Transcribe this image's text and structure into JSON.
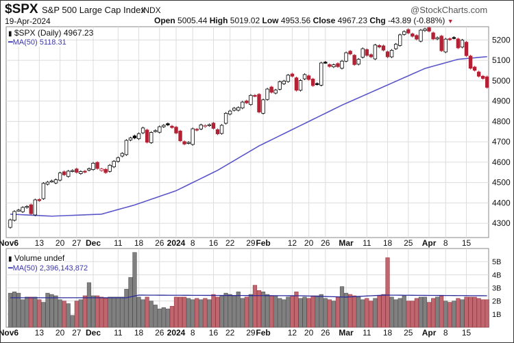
{
  "header": {
    "symbol": "$SPX",
    "name": "S&P 500 Large Cap Index",
    "exchange": "INDX",
    "brand": "@StockCharts.com",
    "date": "19-Apr-2024",
    "open_label": "Open",
    "open": "5005.44",
    "high_label": "High",
    "high": "5019.02",
    "low_label": "Low",
    "low": "4953.56",
    "close_label": "Close",
    "close": "4967.23",
    "chg_label": "Chg",
    "chg": "-43.89 (-0.88%)"
  },
  "legend": {
    "price": "$SPX (Daily) 4967.23",
    "ma": "MA(50) 5118.31",
    "volume": "Volume undef",
    "vol_ma": "MA(50) 2,396,143,872"
  },
  "colors": {
    "up": "#ffffff",
    "down": "#b22234",
    "ma": "#5a55c8",
    "vol_up": "#808080",
    "vol_down": "#c0666e",
    "grid": "#dcdcdc"
  },
  "chart_data": {
    "type": "candlestick",
    "price_ticks": [
      4300,
      4400,
      4500,
      4600,
      4700,
      4800,
      4900,
      5000,
      5100,
      5200
    ],
    "volume_ticks_label": [
      "1B",
      "2B",
      "3B",
      "4B",
      "5B"
    ],
    "volume_ticks": [
      1,
      2,
      3,
      4,
      5
    ],
    "x_labels": [
      {
        "i": 2,
        "t": "Nov6",
        "b": true
      },
      {
        "i": 7,
        "t": "13"
      },
      {
        "i": 12,
        "t": "20"
      },
      {
        "i": 16,
        "t": "27"
      },
      {
        "i": 20,
        "t": "Dec",
        "b": true
      },
      {
        "i": 26,
        "t": "11"
      },
      {
        "i": 31,
        "t": "18"
      },
      {
        "i": 36,
        "t": "26"
      },
      {
        "i": 40,
        "t": "2024",
        "b": true
      },
      {
        "i": 44,
        "t": "8"
      },
      {
        "i": 49,
        "t": "16"
      },
      {
        "i": 53,
        "t": "22"
      },
      {
        "i": 58,
        "t": "29"
      },
      {
        "i": 61,
        "t": "Feb",
        "b": true
      },
      {
        "i": 68,
        "t": "12"
      },
      {
        "i": 72,
        "t": "20"
      },
      {
        "i": 76,
        "t": "26"
      },
      {
        "i": 81,
        "t": "Mar",
        "b": true
      },
      {
        "i": 86,
        "t": "11"
      },
      {
        "i": 91,
        "t": "18"
      },
      {
        "i": 96,
        "t": "25"
      },
      {
        "i": 101,
        "t": "Apr",
        "b": true
      },
      {
        "i": 105,
        "t": "8"
      },
      {
        "i": 110,
        "t": "15"
      }
    ],
    "close": [
      4317,
      4358,
      4365,
      4378,
      4383,
      4347,
      4415,
      4411,
      4496,
      4502,
      4508,
      4514,
      4547,
      4538,
      4556,
      4559,
      4550,
      4554,
      4551,
      4568,
      4595,
      4569,
      4567,
      4549,
      4585,
      4604,
      4622,
      4643,
      4707,
      4719,
      4719,
      4740,
      4768,
      4698,
      4746,
      4755,
      4774,
      4781,
      4783,
      4770,
      4743,
      4705,
      4689,
      4697,
      4764,
      4757,
      4783,
      4780,
      4784,
      4766,
      4739,
      4781,
      4840,
      4851,
      4865,
      4868,
      4895,
      4891,
      4928,
      4925,
      4846,
      4906,
      4959,
      4943,
      4954,
      4995,
      4998,
      5027,
      5022,
      4953,
      5001,
      5030,
      5006,
      4976,
      4982,
      5087,
      5089,
      5070,
      5078,
      5069,
      5096,
      5137,
      5131,
      5079,
      5105,
      5157,
      5124,
      5117,
      5175,
      5165,
      5150,
      5117,
      5149,
      5179,
      5225,
      5241,
      5234,
      5218,
      5204,
      5248,
      5254,
      5243,
      5205,
      5211,
      5147,
      5204,
      5202,
      5209,
      5161,
      5199,
      5123,
      5061,
      5051,
      5022,
      5011,
      4967
    ],
    "volume_b": [
      2.6,
      2.7,
      2.6,
      2.1,
      2.3,
      2.3,
      2.3,
      2.1,
      1.9,
      2.6,
      2.5,
      2.4,
      2.1,
      2.0,
      1.8,
      0.9,
      2.0,
      2.1,
      2.4,
      3.4,
      2.4,
      2.4,
      2.3,
      2.2,
      2.3,
      2.3,
      2.3,
      2.3,
      2.9,
      3.8,
      5.7,
      2.3,
      2.1,
      2.3,
      2.0,
      1.7,
      1.4,
      1.5,
      1.4,
      1.6,
      2.3,
      2.3,
      2.3,
      2.2,
      2.1,
      2.2,
      2.1,
      2.2,
      2.1,
      2.5,
      2.3,
      2.4,
      2.6,
      2.5,
      2.4,
      2.7,
      2.2,
      2.3,
      2.5,
      3.2,
      2.8,
      2.7,
      2.5,
      2.4,
      2.4,
      2.2,
      2.1,
      2.3,
      2.4,
      2.7,
      2.2,
      2.3,
      2.2,
      2.4,
      2.4,
      2.5,
      2.2,
      2.1,
      2.0,
      2.3,
      3.1,
      2.6,
      2.5,
      2.4,
      2.3,
      2.1,
      2.2,
      2.0,
      2.2,
      2.4,
      2.5,
      5.3,
      2.3,
      2.1,
      2.2,
      2.4,
      2.0,
      2.0,
      2.2,
      2.3,
      2.3,
      1.9,
      2.2,
      2.3,
      2.4,
      2.0,
      1.9,
      2.0,
      2.2,
      2.1,
      2.3,
      2.3,
      2.3,
      2.2,
      2.1,
      2.1
    ],
    "ma50_keypoints": [
      [
        0,
        4345
      ],
      [
        10,
        4335
      ],
      [
        22,
        4345
      ],
      [
        30,
        4390
      ],
      [
        40,
        4460
      ],
      [
        50,
        4560
      ],
      [
        60,
        4680
      ],
      [
        70,
        4780
      ],
      [
        80,
        4880
      ],
      [
        90,
        4970
      ],
      [
        100,
        5060
      ],
      [
        108,
        5105
      ],
      [
        115,
        5118
      ]
    ],
    "vol_ma_keypoints": [
      [
        0,
        2.25
      ],
      [
        28,
        2.25
      ],
      [
        31,
        2.45
      ],
      [
        70,
        2.4
      ],
      [
        81,
        2.3
      ],
      [
        90,
        2.45
      ],
      [
        115,
        2.4
      ]
    ],
    "price_ylim": [
      4230,
      5265
    ],
    "volume_ylim": [
      0,
      6
    ]
  }
}
